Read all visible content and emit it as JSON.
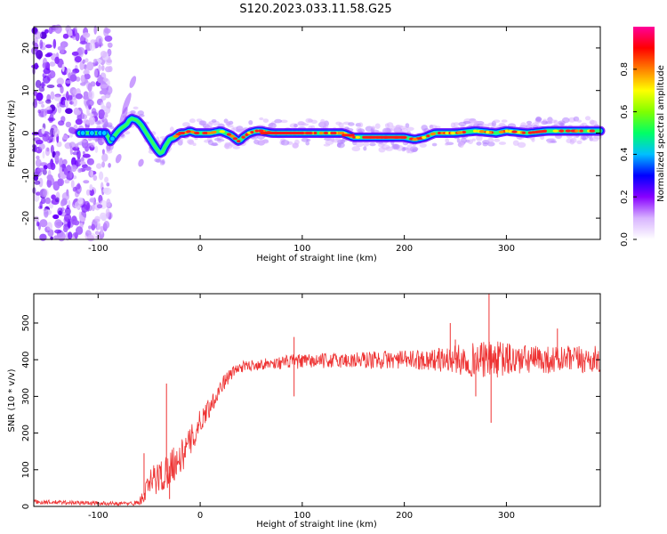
{
  "title": "S120.2023.033.11.58.G25",
  "chart_data": [
    {
      "type": "heatmap",
      "panel": "spectrogram",
      "xlabel": "Height of straight line (km)",
      "ylabel": "Frequency (Hz)",
      "xlim": [
        -163,
        392
      ],
      "ylim": [
        -25,
        25
      ],
      "xticks": [
        -100,
        0,
        100,
        200,
        300
      ],
      "yticks": [
        -20,
        -10,
        0,
        10,
        20
      ],
      "colorbar": {
        "label": "Normalized spectral amplitude",
        "range": [
          0,
          1
        ],
        "ticks": [
          0.0,
          0.2,
          0.4,
          0.6,
          0.8
        ],
        "tick_labels": [
          "0.0",
          "0.2",
          "0.4",
          "0.6",
          "0.8"
        ],
        "colormap": [
          "#ffffff",
          "#d8b4ff",
          "#8800ff",
          "#0000ff",
          "#00bfff",
          "#00ff66",
          "#80ff00",
          "#ffff00",
          "#ff8000",
          "#ff0000",
          "#ff0099"
        ]
      },
      "noise_region_x": [
        -163,
        -88
      ],
      "ridge": {
        "x": [
          -118,
          -110,
          -100,
          -92,
          -88,
          -82,
          -78,
          -72,
          -68,
          -62,
          -58,
          -54,
          -50,
          -46,
          -42,
          -38,
          -34,
          -30,
          -25,
          -20,
          -15,
          -10,
          -5,
          0,
          10,
          20,
          30,
          38,
          42,
          48,
          55,
          60,
          70,
          80,
          100,
          120,
          140,
          150,
          160,
          180,
          200,
          210,
          220,
          230,
          250,
          270,
          290,
          300,
          320,
          340,
          360,
          380,
          392
        ],
        "y": [
          0,
          0,
          0,
          0,
          -2,
          0,
          1,
          2,
          3.5,
          3,
          2,
          0.5,
          -1,
          -2.5,
          -4,
          -5,
          -3,
          -1.5,
          -1,
          0,
          0,
          0.5,
          0,
          0,
          0,
          0.5,
          -0.5,
          -2,
          -1,
          0,
          0.5,
          0.5,
          0,
          0,
          0,
          0,
          0,
          -1,
          -1,
          -1,
          -1,
          -1.5,
          -1,
          0,
          0,
          0.5,
          0,
          0.5,
          0,
          0.5,
          0.5,
          0.5,
          0.5
        ]
      }
    },
    {
      "type": "line",
      "panel": "snr",
      "xlabel": "Height of straight line (km)",
      "ylabel": "SNR (10 * v/v)",
      "xlim": [
        -163,
        392
      ],
      "ylim": [
        0,
        580
      ],
      "xticks": [
        -100,
        0,
        100,
        200,
        300
      ],
      "yticks": [
        0,
        100,
        200,
        300,
        400,
        500
      ],
      "color": "#ee3333",
      "series": [
        {
          "envelope_x": [
            -163,
            -120,
            -90,
            -70,
            -60,
            -55,
            -50,
            -45,
            -40,
            -35,
            -30,
            -25,
            -20,
            -15,
            -10,
            -5,
            0,
            5,
            10,
            15,
            20,
            25,
            30,
            35,
            40,
            50,
            60,
            70,
            80,
            90,
            100,
            120,
            140,
            160,
            180,
            200,
            220,
            240,
            260,
            280,
            300,
            320,
            340,
            360,
            380,
            392
          ],
          "mean": [
            12,
            10,
            8,
            8,
            10,
            30,
            60,
            75,
            80,
            85,
            110,
            120,
            130,
            150,
            175,
            200,
            230,
            255,
            275,
            300,
            325,
            345,
            360,
            372,
            380,
            385,
            388,
            390,
            392,
            395,
            395,
            397,
            398,
            399,
            400,
            400,
            400,
            400,
            400,
            400,
            400,
            400,
            400,
            400,
            400,
            400
          ],
          "spread": [
            6,
            6,
            5,
            5,
            8,
            25,
            35,
            45,
            50,
            50,
            50,
            50,
            45,
            45,
            40,
            40,
            35,
            30,
            28,
            25,
            22,
            20,
            18,
            16,
            15,
            15,
            15,
            15,
            18,
            20,
            20,
            20,
            22,
            25,
            25,
            25,
            28,
            35,
            45,
            50,
            50,
            40,
            38,
            38,
            38,
            38
          ]
        }
      ],
      "spikes": [
        {
          "x": -33,
          "y": 335
        },
        {
          "x": -30,
          "y": 20
        },
        {
          "x": -55,
          "y": 145
        },
        {
          "x": 92,
          "y": 462
        },
        {
          "x": 92,
          "y": 300
        },
        {
          "x": 245,
          "y": 500
        },
        {
          "x": 250,
          "y": 455
        },
        {
          "x": 283,
          "y": 580
        },
        {
          "x": 285,
          "y": 228
        },
        {
          "x": 270,
          "y": 300
        },
        {
          "x": 350,
          "y": 485
        }
      ]
    }
  ]
}
